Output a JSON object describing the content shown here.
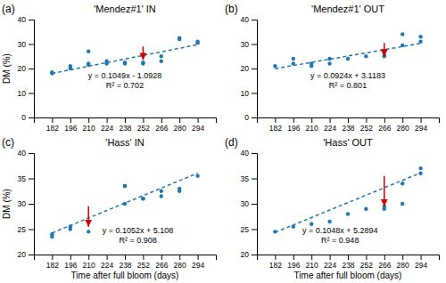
{
  "chart_data": [
    {
      "type": "scatter",
      "label": "(a)",
      "title": "'Mendez#1' IN",
      "y_label": "DM (%)",
      "xlim": [
        168,
        308
      ],
      "ylim": [
        0,
        40
      ],
      "xticks": [
        182,
        196,
        210,
        224,
        238,
        252,
        266,
        280,
        294
      ],
      "yticks": [
        0,
        10,
        20,
        30,
        40
      ],
      "grid": false,
      "series": [
        {
          "type": "scatter",
          "marker": "circle",
          "x": [
            182,
            182,
            196,
            196,
            210,
            210,
            210,
            224,
            224,
            238,
            238,
            252,
            252,
            266,
            266,
            280,
            280,
            294,
            294
          ],
          "values": [
            18.0,
            18.5,
            20.0,
            21.0,
            21.5,
            22.0,
            27.0,
            22.0,
            23.0,
            22.0,
            22.5,
            22.0,
            22.5,
            23.0,
            25.0,
            32.0,
            32.5,
            30.5,
            31.0
          ]
        },
        {
          "type": "line",
          "line_style": "dashed",
          "x": [
            182,
            294
          ],
          "values": [
            17.999,
            29.7478
          ]
        }
      ],
      "arrows": [
        {
          "x": 252,
          "from": 29,
          "to": 23.5,
          "color": "#CC0000"
        }
      ],
      "annotations": [
        {
          "lines": [
            "y = 0.1049x - 1.0928",
            "R² = 0.702"
          ],
          "x": 238,
          "y": 11
        }
      ]
    },
    {
      "type": "scatter",
      "label": "(b)",
      "title": "'Mendez#1' OUT",
      "xlim": [
        168,
        308
      ],
      "ylim": [
        0,
        40
      ],
      "xticks": [
        182,
        196,
        210,
        224,
        238,
        252,
        266,
        280,
        294
      ],
      "yticks": [
        0,
        10,
        20,
        30,
        40
      ],
      "grid": false,
      "series": [
        {
          "type": "scatter",
          "marker": "circle",
          "x": [
            182,
            196,
            196,
            210,
            210,
            224,
            224,
            238,
            252,
            266,
            266,
            280,
            280,
            294,
            294
          ],
          "values": [
            21.0,
            22.0,
            24.0,
            21.0,
            22.0,
            22.0,
            24.0,
            24.0,
            25.0,
            25.0,
            25.5,
            29.5,
            34.0,
            31.0,
            33.0
          ]
        },
        {
          "type": "line",
          "line_style": "dashed",
          "x": [
            182,
            294
          ],
          "values": [
            19.9351,
            30.2839
          ]
        }
      ],
      "arrows": [
        {
          "x": 266,
          "from": 30.5,
          "to": 25.0,
          "color": "#CC0000"
        }
      ],
      "annotations": [
        {
          "lines": [
            "y = 0.0924x + 3.1183",
            "R² = 0.801"
          ],
          "x": 238,
          "y": 11
        }
      ]
    },
    {
      "type": "scatter",
      "label": "(c)",
      "title": "'Hass' IN",
      "x_label": "Time after full bloom (days)",
      "y_label": "DM (%)",
      "xlim": [
        168,
        308
      ],
      "ylim": [
        20,
        40
      ],
      "xticks": [
        182,
        196,
        210,
        224,
        238,
        252,
        266,
        280,
        294
      ],
      "yticks": [
        20,
        25,
        30,
        35,
        40
      ],
      "grid": false,
      "series": [
        {
          "type": "scatter",
          "marker": "circle",
          "x": [
            182,
            182,
            196,
            196,
            210,
            238,
            238,
            238,
            252,
            252,
            266,
            266,
            280,
            280,
            294
          ],
          "values": [
            23.5,
            24.0,
            25.0,
            25.5,
            24.5,
            30.0,
            33.5,
            33.5,
            31.0,
            31.0,
            31.5,
            32.5,
            32.5,
            33.0,
            35.5
          ]
        },
        {
          "type": "line",
          "line_style": "dashed",
          "x": [
            182,
            294
          ],
          "values": [
            24.2544,
            36.0368
          ]
        }
      ],
      "arrows": [
        {
          "x": 210,
          "from": 29.5,
          "to": 25.5,
          "color": "#CC0000"
        }
      ],
      "annotations": [
        {
          "lines": [
            "y = 0.1052x + 5.108",
            "R² = 0.908"
          ],
          "x": 248,
          "y": 21.8
        }
      ]
    },
    {
      "type": "scatter",
      "label": "(d)",
      "title": "'Hass' OUT",
      "x_label": "Time after full bloom (days)",
      "xlim": [
        168,
        308
      ],
      "ylim": [
        20,
        40
      ],
      "xticks": [
        182,
        196,
        210,
        224,
        238,
        252,
        266,
        280,
        294
      ],
      "yticks": [
        20,
        25,
        30,
        35,
        40
      ],
      "grid": false,
      "series": [
        {
          "type": "scatter",
          "marker": "circle",
          "x": [
            182,
            196,
            210,
            224,
            238,
            252,
            266,
            266,
            280,
            280,
            294,
            294
          ],
          "values": [
            24.5,
            25.5,
            26.0,
            26.5,
            28.0,
            29.0,
            29.0,
            29.5,
            30.0,
            34.0,
            36.0,
            37.0
          ]
        },
        {
          "type": "line",
          "line_style": "dashed",
          "x": [
            182,
            294
          ],
          "values": [
            24.363,
            36.1006
          ]
        }
      ],
      "arrows": [
        {
          "x": 266,
          "from": 35.5,
          "to": 29.5,
          "color": "#CC0000"
        }
      ],
      "annotations": [
        {
          "lines": [
            "y = 0.1048x + 5.2894",
            "R² = 0.948"
          ],
          "x": 232,
          "y": 21.8
        }
      ]
    }
  ]
}
